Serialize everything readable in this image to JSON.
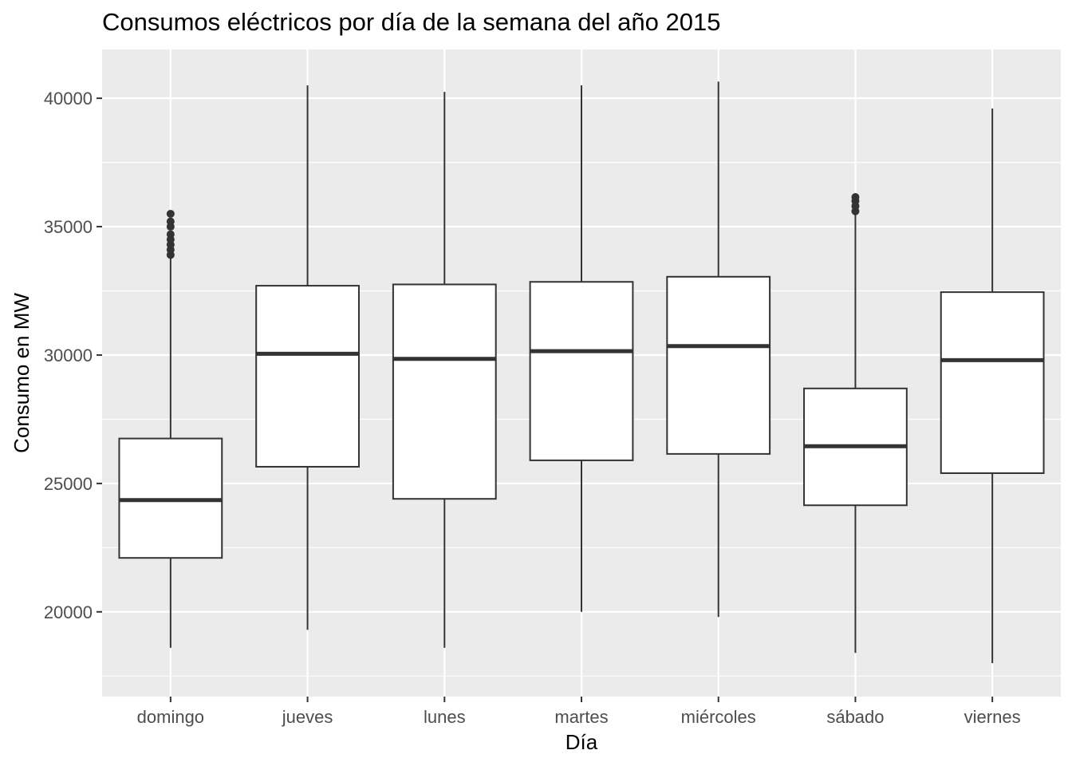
{
  "chart_data": {
    "type": "boxplot",
    "title": "Consumos eléctricos por día de la semana del año 2015",
    "xlabel": "Día",
    "ylabel": "Consumo en MW",
    "categories": [
      "domingo",
      "jueves",
      "lunes",
      "martes",
      "miércoles",
      "sábado",
      "viernes"
    ],
    "yticks": [
      20000,
      25000,
      30000,
      35000,
      40000
    ],
    "ylim": [
      16700,
      41900
    ],
    "grid": true,
    "boxes": [
      {
        "category": "domingo",
        "min": 18600,
        "q1": 22100,
        "median": 24350,
        "q3": 26750,
        "max": 33800,
        "outliers": [
          33900,
          34100,
          34300,
          34500,
          34700,
          35000,
          35200,
          35500
        ]
      },
      {
        "category": "jueves",
        "min": 19300,
        "q1": 25650,
        "median": 30050,
        "q3": 32700,
        "max": 40500,
        "outliers": []
      },
      {
        "category": "lunes",
        "min": 18600,
        "q1": 24400,
        "median": 29850,
        "q3": 32750,
        "max": 40250,
        "outliers": []
      },
      {
        "category": "martes",
        "min": 20000,
        "q1": 25900,
        "median": 30150,
        "q3": 32850,
        "max": 40500,
        "outliers": []
      },
      {
        "category": "miércoles",
        "min": 19800,
        "q1": 26150,
        "median": 30350,
        "q3": 33050,
        "max": 40650,
        "outliers": []
      },
      {
        "category": "sábado",
        "min": 18400,
        "q1": 24150,
        "median": 26450,
        "q3": 28700,
        "max": 35550,
        "outliers": [
          35600,
          35800,
          36000,
          36150
        ]
      },
      {
        "category": "viernes",
        "min": 18000,
        "q1": 25400,
        "median": 29800,
        "q3": 32450,
        "max": 39600,
        "outliers": []
      }
    ]
  },
  "colors": {
    "panel": "#ebebeb",
    "grid_major": "#ffffff",
    "box_fill": "#ffffff",
    "box_stroke": "#333333",
    "median": "#333333",
    "tick_text": "#4d4d4d"
  }
}
